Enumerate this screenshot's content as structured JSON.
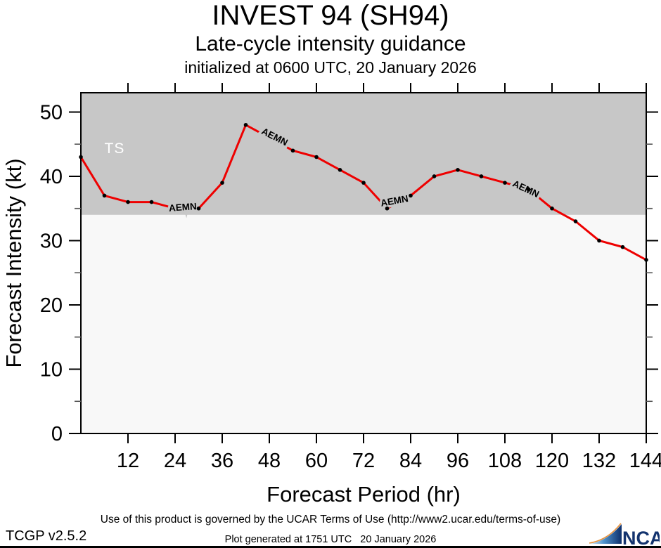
{
  "header": {
    "title": "INVEST 94 (SH94)",
    "subtitle": "Late-cycle intensity guidance",
    "init_line": "initialized at 0600 UTC, 20 January 2026"
  },
  "chart_data": {
    "type": "line",
    "title": "INVEST 94 (SH94)",
    "xlabel": "Forecast Period (hr)",
    "ylabel": "Forecast Intensity (kt)",
    "xlim": [
      0,
      144
    ],
    "ylim": [
      0,
      53
    ],
    "x_ticks": [
      12,
      24,
      36,
      48,
      60,
      72,
      84,
      96,
      108,
      120,
      132,
      144
    ],
    "y_major_ticks": [
      0,
      10,
      20,
      30,
      40,
      50
    ],
    "y_minor_ticks": [
      5,
      15,
      25,
      35,
      45
    ],
    "grid": false,
    "legend_position": "none",
    "threshold_band": {
      "label": "TS",
      "from": 34,
      "to": 53,
      "color": "#c7c7c7",
      "below_color": "#f8f8f8",
      "label_color": "#ffffff"
    },
    "series": [
      {
        "name": "AEMN",
        "color": "#ee0000",
        "x": [
          0,
          6,
          12,
          18,
          24,
          30,
          36,
          42,
          48,
          54,
          60,
          66,
          72,
          78,
          84,
          90,
          96,
          102,
          108,
          114,
          120,
          126,
          132,
          138,
          144
        ],
        "values": [
          43,
          37,
          36,
          36,
          35,
          35,
          39,
          48,
          46,
          44,
          43,
          41,
          39,
          35,
          37,
          40,
          41,
          40,
          39,
          38,
          35,
          33,
          30,
          29,
          27
        ]
      }
    ],
    "series_labels": [
      {
        "text": "AEMN",
        "hour": 26,
        "value": 34.7,
        "angle": -4
      },
      {
        "text": "AEMN",
        "hour": 49,
        "value": 45.7,
        "angle": 27
      },
      {
        "text": "AEMN",
        "hour": 80,
        "value": 35.7,
        "angle": -10
      },
      {
        "text": "AEMN",
        "hour": 113,
        "value": 37.6,
        "angle": 25
      }
    ],
    "hidden_point_hours": [
      24,
      48
    ]
  },
  "footer": {
    "terms": "Use of this product is governed by the UCAR Terms of Use (http://www2.ucar.edu/terms-of-use)",
    "version": "TCGP v2.5.2",
    "generated": "Plot generated at 1751 UTC   20 January 2026",
    "ncar": "NCAR"
  }
}
